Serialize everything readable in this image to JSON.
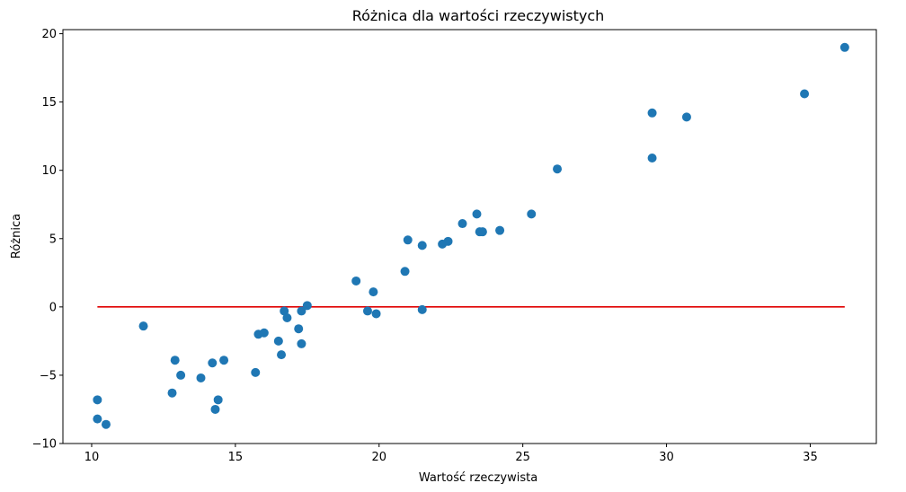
{
  "chart_data": {
    "type": "scatter",
    "title": "Różnica dla wartości rzeczywistych",
    "xlabel": "Wartość rzeczywista",
    "ylabel": "Różnica",
    "xlim": [
      9.0,
      37.3
    ],
    "ylim": [
      -10,
      20.3
    ],
    "xticks": [
      10,
      15,
      20,
      25,
      30,
      35
    ],
    "yticks": [
      -10,
      -5,
      0,
      5,
      10,
      15,
      20
    ],
    "grid": false,
    "point_color": "#1f77b4",
    "reference_line": {
      "y": 0,
      "x_start": 10.2,
      "x_end": 36.2,
      "color": "#e00000"
    },
    "points": [
      {
        "x": 10.2,
        "y": -6.8
      },
      {
        "x": 10.2,
        "y": -8.2
      },
      {
        "x": 10.5,
        "y": -8.6
      },
      {
        "x": 11.8,
        "y": -1.4
      },
      {
        "x": 12.8,
        "y": -6.3
      },
      {
        "x": 12.9,
        "y": -3.9
      },
      {
        "x": 13.1,
        "y": -5.0
      },
      {
        "x": 13.8,
        "y": -5.2
      },
      {
        "x": 14.2,
        "y": -4.1
      },
      {
        "x": 14.3,
        "y": -7.5
      },
      {
        "x": 14.4,
        "y": -6.8
      },
      {
        "x": 14.6,
        "y": -3.9
      },
      {
        "x": 15.7,
        "y": -4.8
      },
      {
        "x": 15.8,
        "y": -2.0
      },
      {
        "x": 16.0,
        "y": -1.9
      },
      {
        "x": 16.5,
        "y": -2.5
      },
      {
        "x": 16.6,
        "y": -3.5
      },
      {
        "x": 16.7,
        "y": -0.3
      },
      {
        "x": 16.8,
        "y": -0.8
      },
      {
        "x": 17.2,
        "y": -1.6
      },
      {
        "x": 17.3,
        "y": -2.7
      },
      {
        "x": 17.3,
        "y": -0.3
      },
      {
        "x": 17.5,
        "y": 0.1
      },
      {
        "x": 19.2,
        "y": 1.9
      },
      {
        "x": 19.6,
        "y": -0.3
      },
      {
        "x": 19.8,
        "y": 1.1
      },
      {
        "x": 19.9,
        "y": -0.5
      },
      {
        "x": 20.9,
        "y": 2.6
      },
      {
        "x": 21.0,
        "y": 4.9
      },
      {
        "x": 21.5,
        "y": 4.5
      },
      {
        "x": 21.5,
        "y": -0.2
      },
      {
        "x": 22.2,
        "y": 4.6
      },
      {
        "x": 22.4,
        "y": 4.8
      },
      {
        "x": 22.9,
        "y": 6.1
      },
      {
        "x": 23.4,
        "y": 6.8
      },
      {
        "x": 23.5,
        "y": 5.5
      },
      {
        "x": 23.6,
        "y": 5.5
      },
      {
        "x": 24.2,
        "y": 5.6
      },
      {
        "x": 25.3,
        "y": 6.8
      },
      {
        "x": 26.2,
        "y": 10.1
      },
      {
        "x": 29.5,
        "y": 14.2
      },
      {
        "x": 29.5,
        "y": 10.9
      },
      {
        "x": 30.7,
        "y": 13.9
      },
      {
        "x": 34.8,
        "y": 15.6
      },
      {
        "x": 36.2,
        "y": 19.0
      }
    ]
  }
}
